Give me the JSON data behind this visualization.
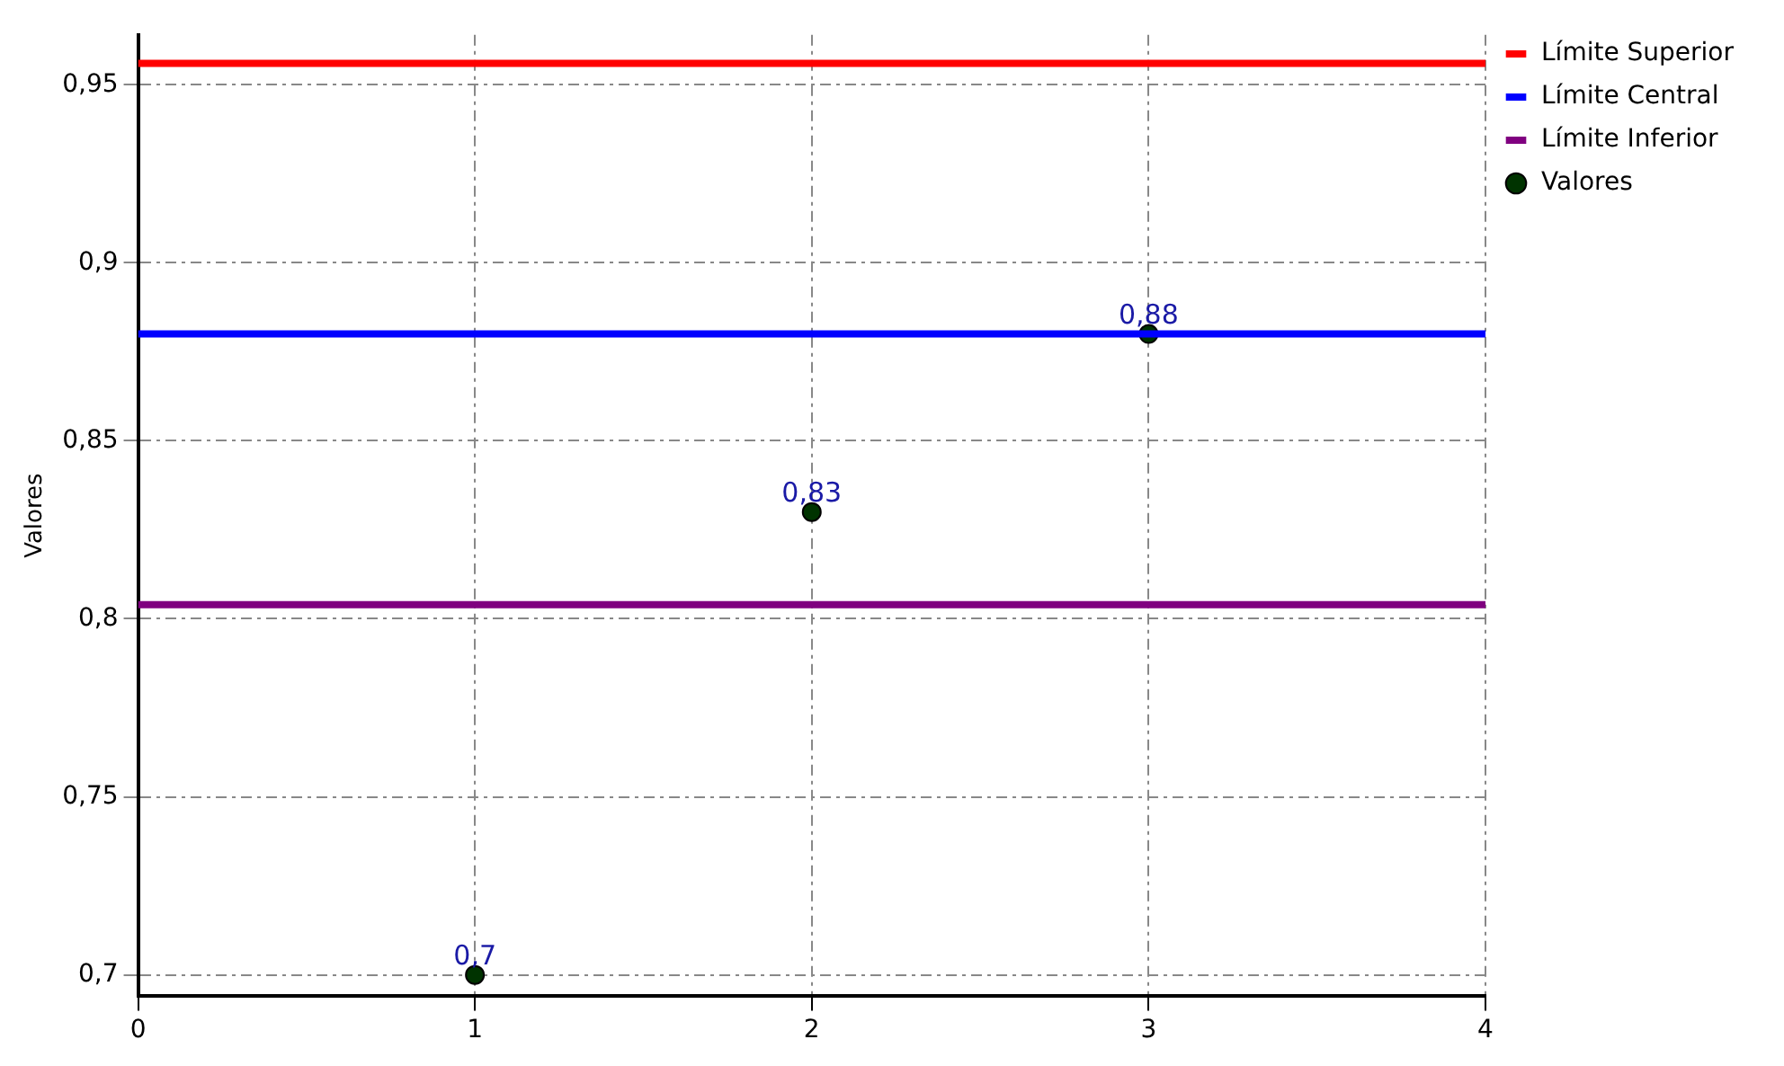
{
  "chart_data": {
    "type": "scatter",
    "ylabel": "Valores",
    "xlim": [
      0,
      4
    ],
    "xticks": [
      0,
      1,
      2,
      3,
      4
    ],
    "ylim": [
      0.694,
      0.964
    ],
    "yticks": [
      {
        "value": 0.7,
        "label": "0,7"
      },
      {
        "value": 0.75,
        "label": "0,75"
      },
      {
        "value": 0.8,
        "label": "0,8"
      },
      {
        "value": 0.85,
        "label": "0,85"
      },
      {
        "value": 0.9,
        "label": "0,9"
      },
      {
        "value": 0.95,
        "label": "0,95"
      }
    ],
    "grid": true,
    "legend": "top right",
    "series": [
      {
        "name": "Límite Superior",
        "type": "line",
        "color": "#ff0000",
        "x": [
          0,
          4
        ],
        "values": [
          0.956,
          0.956
        ],
        "marker": "none"
      },
      {
        "name": "Límite Central",
        "type": "line",
        "color": "#0000ff",
        "x": [
          0,
          4
        ],
        "values": [
          0.88,
          0.88
        ],
        "marker": "none"
      },
      {
        "name": "Límite Inferior",
        "type": "line",
        "color": "#800080",
        "x": [
          0,
          4
        ],
        "values": [
          0.804,
          0.804
        ],
        "marker": "none"
      },
      {
        "name": "Valores",
        "color": "#003300",
        "x": [
          1,
          2,
          3
        ],
        "values": [
          0.7,
          0.83,
          0.88
        ],
        "marker": "circle",
        "value_labels": [
          "0,7",
          "0,83",
          "0,88"
        ]
      }
    ]
  }
}
